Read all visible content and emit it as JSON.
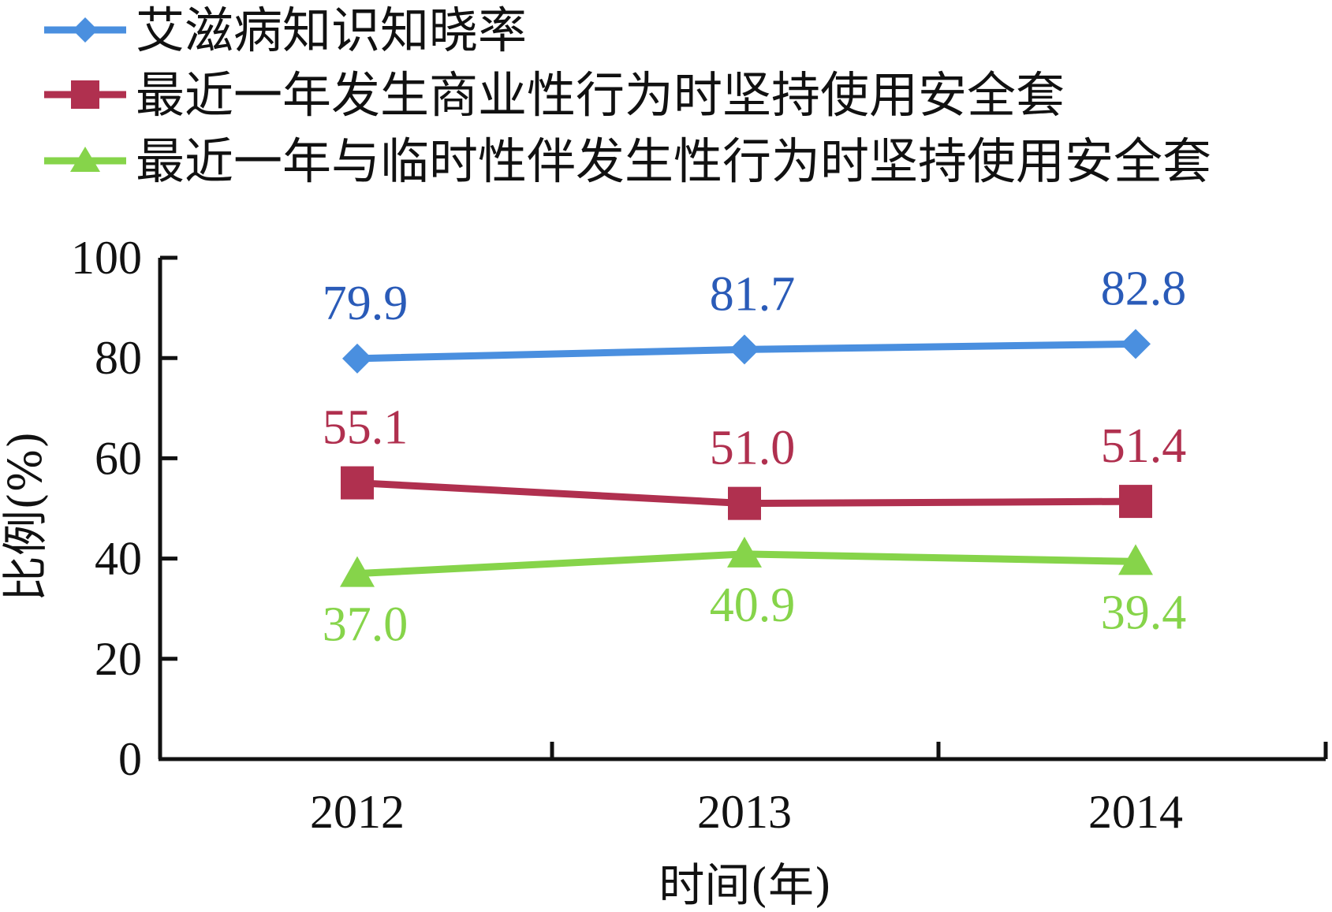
{
  "chart_data": {
    "type": "line",
    "categories": [
      "2012",
      "2013",
      "2014"
    ],
    "xlabel": "时间(年)",
    "ylabel": "比例(%)",
    "ylim": [
      0,
      100
    ],
    "yticks": [
      0,
      20,
      40,
      60,
      80,
      100
    ],
    "grid": false,
    "legend_position": "top-left",
    "series": [
      {
        "name": "艾滋病知识知晓率",
        "values": [
          79.9,
          81.7,
          82.8
        ],
        "color": "#4a8fdf",
        "label_color": "#2a5bb8",
        "marker": "diamond",
        "label_pos": "above"
      },
      {
        "name": "最近一年发生商业性行为时坚持使用安全套",
        "values": [
          55.1,
          51.0,
          51.4
        ],
        "color": "#b0304f",
        "label_color": "#b0304f",
        "marker": "square",
        "label_pos": "above"
      },
      {
        "name": "最近一年与临时性伴发生性行为时坚持使用安全套",
        "values": [
          37.0,
          40.9,
          39.4
        ],
        "color": "#86d44a",
        "label_color": "#86d44a",
        "marker": "triangle",
        "label_pos": "below"
      }
    ],
    "data_labels": [
      [
        "79.9",
        "81.7",
        "82.8"
      ],
      [
        "55.1",
        "51.0",
        "51.4"
      ],
      [
        "37.0",
        "40.9",
        "39.4"
      ]
    ]
  }
}
